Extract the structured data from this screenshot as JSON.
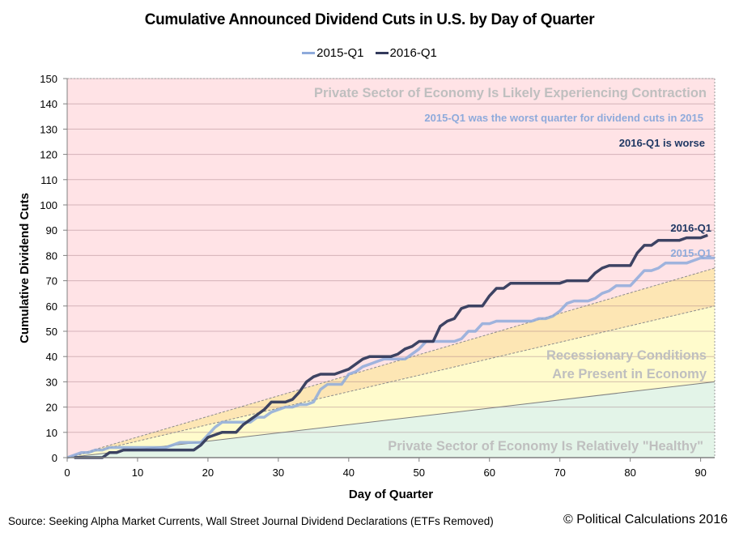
{
  "chart_data": {
    "type": "line",
    "title": "Cumulative Announced Dividend Cuts in U.S. by Day of Quarter",
    "xlabel": "Day of Quarter",
    "ylabel": "Cumulative Dividend Cuts",
    "xlim": [
      0,
      92
    ],
    "ylim": [
      0,
      150
    ],
    "x_ticks": [
      0,
      10,
      20,
      30,
      40,
      50,
      60,
      70,
      80,
      90
    ],
    "y_ticks": [
      0,
      10,
      20,
      30,
      40,
      50,
      60,
      70,
      80,
      90,
      100,
      110,
      120,
      130,
      140,
      150
    ],
    "grid": "horizontal",
    "legend_position": "top-center",
    "legend": [
      "2015-Q1",
      "2016-Q1"
    ],
    "series": [
      {
        "name": "2015-Q1",
        "color": "#8eaadb",
        "x": [
          0,
          1,
          2,
          3,
          4,
          5,
          6,
          7,
          8,
          9,
          10,
          11,
          12,
          13,
          14,
          15,
          16,
          17,
          18,
          19,
          20,
          21,
          22,
          23,
          24,
          25,
          26,
          27,
          28,
          29,
          30,
          31,
          32,
          33,
          34,
          35,
          36,
          37,
          38,
          39,
          40,
          41,
          42,
          43,
          44,
          45,
          46,
          47,
          48,
          49,
          50,
          51,
          52,
          53,
          54,
          55,
          56,
          57,
          58,
          59,
          60,
          61,
          62,
          63,
          64,
          65,
          66,
          67,
          68,
          69,
          70,
          71,
          72,
          73,
          74,
          75,
          76,
          77,
          78,
          79,
          80,
          81,
          82,
          83,
          84,
          85,
          86,
          87,
          88,
          89,
          90,
          91,
          92
        ],
        "values": [
          0,
          1,
          2,
          2,
          3,
          3,
          4,
          4,
          4,
          4,
          4,
          4,
          4,
          4,
          4,
          5,
          6,
          6,
          6,
          6,
          9,
          12,
          14,
          14,
          14,
          14,
          14,
          16,
          16,
          18,
          19,
          20,
          20,
          21,
          21,
          22,
          27,
          29,
          29,
          29,
          33,
          34,
          36,
          37,
          38,
          39,
          39,
          39,
          39,
          41,
          43,
          46,
          46,
          46,
          46,
          46,
          47,
          50,
          50,
          53,
          53,
          54,
          54,
          54,
          54,
          54,
          54,
          55,
          55,
          56,
          58,
          61,
          62,
          62,
          62,
          63,
          65,
          66,
          68,
          68,
          68,
          71,
          74,
          74,
          75,
          77,
          77,
          77,
          77,
          78,
          79,
          79,
          79
        ]
      },
      {
        "name": "2016-Q1",
        "color": "#333a5c",
        "x": [
          1,
          2,
          3,
          4,
          5,
          6,
          7,
          8,
          9,
          10,
          11,
          12,
          13,
          14,
          15,
          16,
          17,
          18,
          19,
          20,
          21,
          22,
          23,
          24,
          25,
          26,
          27,
          28,
          29,
          30,
          31,
          32,
          33,
          34,
          35,
          36,
          37,
          38,
          39,
          40,
          41,
          42,
          43,
          44,
          45,
          46,
          47,
          48,
          49,
          50,
          51,
          52,
          53,
          54,
          55,
          56,
          57,
          58,
          59,
          60,
          61,
          62,
          63,
          64,
          65,
          66,
          67,
          68,
          69,
          70,
          71,
          72,
          73,
          74,
          75,
          76,
          77,
          78,
          79,
          80,
          81,
          82,
          83,
          84,
          85,
          86,
          87,
          88,
          89,
          90,
          91
        ],
        "values": [
          0,
          0,
          0,
          0,
          0,
          2,
          2,
          3,
          3,
          3,
          3,
          3,
          3,
          3,
          3,
          3,
          3,
          3,
          5,
          8,
          9,
          10,
          10,
          10,
          13,
          15,
          17,
          19,
          22,
          22,
          22,
          23,
          26,
          30,
          32,
          33,
          33,
          33,
          34,
          35,
          37,
          39,
          40,
          40,
          40,
          40,
          41,
          43,
          44,
          46,
          46,
          46,
          52,
          54,
          55,
          59,
          60,
          60,
          60,
          64,
          67,
          67,
          69,
          69,
          69,
          69,
          69,
          69,
          69,
          69,
          70,
          70,
          70,
          70,
          73,
          75,
          76,
          76,
          76,
          76,
          81,
          84,
          84,
          86,
          86,
          86,
          86,
          87,
          87,
          87,
          88
        ]
      }
    ],
    "zones": [
      {
        "name": "healthy",
        "label": "Private Sector of Economy Is Relatively \"Healthy\"",
        "upper_at_x_max": 30,
        "color": "#e3f4e8"
      },
      {
        "name": "recession",
        "label_line1": "Recessionary Conditions",
        "label_line2": "Are Present in Economy",
        "upper_at_x_max": 60,
        "color": "#fffbcc"
      },
      {
        "name": "transition",
        "upper_at_x_max": 75,
        "color": "#fde6b4"
      },
      {
        "name": "contraction",
        "label": "Private Sector of Economy Is Likely Experiencing Contraction",
        "color": "#ffe3e6"
      }
    ],
    "annotations": [
      {
        "text": "2015-Q1 was the worst quarter for dividend cuts in 2015",
        "color": "#8eaadb",
        "y": 130
      },
      {
        "text": "2016-Q1 is worse",
        "color": "#1f3864",
        "y": 122
      },
      {
        "text": "2016-Q1",
        "color": "#1f3864",
        "series": "2016-Q1"
      },
      {
        "text": "2015-Q1",
        "color": "#8eaadb",
        "series": "2015-Q1"
      }
    ]
  },
  "footer": {
    "source": "Source: Seeking Alpha Market Currents, Wall Street Journal Dividend Declarations (ETFs Removed)",
    "copyright": "© Political Calculations 2016"
  }
}
